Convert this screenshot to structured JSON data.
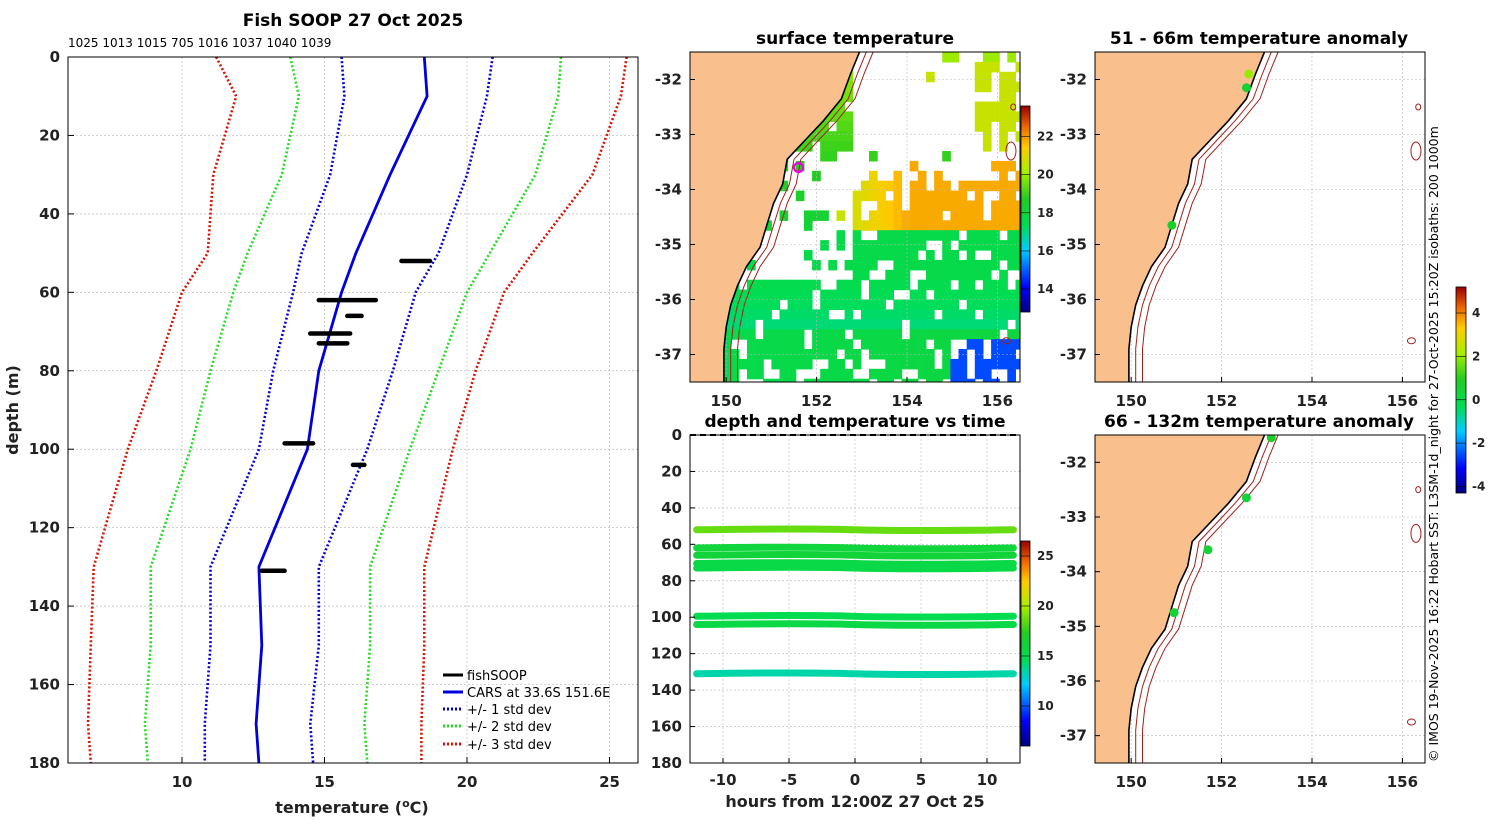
{
  "figure": {
    "footer": "© IMOS 19-Nov-2025 16:22 Hobart SST: L3SM-1d_night for 27-Oct-2025 15:20Z isobaths: 200  1000m"
  },
  "colors": {
    "land": "#f9c08e",
    "coast": "#000000",
    "isobath": "#a0201a",
    "cars": "#0000dd",
    "sd1": "#0000dd",
    "sd2": "#22dd22",
    "sd3": "#dd1100",
    "fishsoop": "#000000",
    "grid": "#b8b8b8",
    "float_marker": "#ee00ee"
  },
  "chart_data": [
    {
      "id": "profile",
      "type": "line",
      "title": "Fish SOOP 27 Oct 2025",
      "subtitle": "1025 1013 1015 705 1016 1037 1040 1039",
      "xlabel": "temperature (°C)",
      "ylabel": "depth (m)",
      "xlim": [
        6,
        26
      ],
      "ylim": [
        180,
        0
      ],
      "xticks": [
        10,
        15,
        20,
        25
      ],
      "yticks": [
        0,
        20,
        40,
        60,
        80,
        100,
        120,
        140,
        160,
        180
      ],
      "depth": [
        0,
        10,
        30,
        50,
        60,
        80,
        100,
        130,
        150,
        170,
        180
      ],
      "series": [
        {
          "name": "CARS at 33.6S 151.6E",
          "key": "cars",
          "style": "solid",
          "values": [
            18.5,
            18.6,
            17.3,
            16.1,
            15.6,
            14.8,
            14.4,
            12.7,
            12.8,
            12.6,
            12.7
          ]
        },
        {
          "name": "+/- 1 std dev",
          "key": "sd1",
          "style": "dotted",
          "values": [
            15.6,
            15.7,
            15.2,
            14.2,
            13.9,
            13.2,
            12.7,
            11.0,
            11.0,
            10.8,
            10.8
          ]
        },
        {
          "name": "+/- 1 std dev",
          "key": "sd1",
          "style": "dotted",
          "legend": false,
          "values": [
            20.9,
            20.7,
            20.0,
            19.0,
            18.2,
            17.4,
            16.5,
            14.8,
            14.8,
            14.5,
            14.6
          ]
        },
        {
          "name": "+/- 2 std dev",
          "key": "sd2",
          "style": "dotted",
          "values": [
            13.8,
            14.1,
            13.5,
            12.3,
            11.8,
            11.0,
            10.3,
            8.9,
            8.9,
            8.7,
            8.8
          ]
        },
        {
          "name": "+/- 2 std dev",
          "key": "sd2",
          "style": "dotted",
          "legend": false,
          "values": [
            23.3,
            23.2,
            22.4,
            20.8,
            20.0,
            19.0,
            18.0,
            16.6,
            16.6,
            16.4,
            16.5
          ]
        },
        {
          "name": "+/- 3 std dev",
          "key": "sd3",
          "style": "dotted",
          "values": [
            11.2,
            11.9,
            11.1,
            10.9,
            10.0,
            9.1,
            8.1,
            6.9,
            6.8,
            6.7,
            6.8
          ]
        },
        {
          "name": "+/- 3 std dev",
          "key": "sd3",
          "style": "dotted",
          "legend": false,
          "values": [
            25.6,
            25.4,
            24.4,
            22.3,
            21.3,
            20.3,
            19.5,
            18.5,
            18.5,
            18.4,
            18.4
          ]
        }
      ],
      "fishsoop": {
        "name": "fishSOOP",
        "segments": [
          {
            "depth": 52,
            "tmin": 17.7,
            "tmax": 18.7
          },
          {
            "depth": 62,
            "tmin": 14.8,
            "tmax": 16.8
          },
          {
            "depth": 66,
            "tmin": 15.8,
            "tmax": 16.3
          },
          {
            "depth": 70.5,
            "tmin": 14.5,
            "tmax": 15.9
          },
          {
            "depth": 73,
            "tmin": 14.8,
            "tmax": 15.8
          },
          {
            "depth": 98.5,
            "tmin": 13.6,
            "tmax": 14.6
          },
          {
            "depth": 104,
            "tmin": 16.0,
            "tmax": 16.4
          },
          {
            "depth": 131,
            "tmin": 12.8,
            "tmax": 13.6
          }
        ]
      },
      "legend_position": "bottom-right"
    },
    {
      "id": "sst_map",
      "type": "heatmap",
      "title": "surface temperature",
      "xlim": [
        149.2,
        156.5
      ],
      "ylim": [
        -37.5,
        -31.5
      ],
      "xticks": [
        150,
        152,
        154,
        156
      ],
      "yticks": [
        -32,
        -33,
        -34,
        -35,
        -36,
        -37
      ],
      "colorbar": {
        "min": 12.8,
        "max": 23.6,
        "ticks": [
          14,
          16,
          18,
          20,
          22
        ]
      },
      "float_position": {
        "lon": 151.6,
        "lat": -33.6
      }
    },
    {
      "id": "time_depth",
      "type": "scatter",
      "title": "depth and temperature vs time",
      "xlabel": "hours from 12:00Z 27 Oct 25",
      "xlim": [
        -12.5,
        12.5
      ],
      "ylim": [
        180,
        0
      ],
      "xticks": [
        -10,
        -5,
        0,
        5,
        10
      ],
      "yticks": [
        0,
        20,
        40,
        60,
        80,
        100,
        120,
        140,
        160,
        180
      ],
      "colorbar": {
        "min": 6,
        "max": 26.5,
        "ticks": [
          10,
          15,
          20,
          25
        ]
      },
      "tracks": [
        {
          "depth": 52,
          "temp": 18.6
        },
        {
          "depth": 62,
          "temp": 15.9
        },
        {
          "depth": 66,
          "temp": 16.0
        },
        {
          "depth": 70.5,
          "temp": 15.4
        },
        {
          "depth": 73,
          "temp": 15.3
        },
        {
          "depth": 99.5,
          "temp": 14.8
        },
        {
          "depth": 104,
          "temp": 15.4
        },
        {
          "depth": 131,
          "temp": 13.4
        }
      ]
    },
    {
      "id": "anom_upper",
      "type": "scatter",
      "title": "51 - 66m temperature anomaly",
      "xlim": [
        149.2,
        156.5
      ],
      "ylim": [
        -37.5,
        -31.5
      ],
      "xticks": [
        150,
        152,
        154,
        156
      ],
      "yticks": [
        -32,
        -33,
        -34,
        -35,
        -36,
        -37
      ],
      "points": [
        {
          "lon": 152.6,
          "lat": -31.9,
          "anomaly": 2.0
        },
        {
          "lon": 152.55,
          "lat": -32.15,
          "anomaly": 0.5
        },
        {
          "lon": 150.9,
          "lat": -34.65,
          "anomaly": 0.6
        }
      ]
    },
    {
      "id": "anom_lower",
      "type": "scatter",
      "title": "66 - 132m temperature anomaly",
      "xlim": [
        149.2,
        156.5
      ],
      "ylim": [
        -37.5,
        -31.5
      ],
      "xticks": [
        150,
        152,
        154,
        156
      ],
      "yticks": [
        -32,
        -33,
        -34,
        -35,
        -36,
        -37
      ],
      "colorbar": {
        "min": -4.3,
        "max": 5.2,
        "ticks": [
          -4,
          -2,
          0,
          2,
          4
        ]
      },
      "points": [
        {
          "lon": 153.1,
          "lat": -31.55,
          "anomaly": 0.8
        },
        {
          "lon": 152.55,
          "lat": -32.65,
          "anomaly": 0.4
        },
        {
          "lon": 151.7,
          "lat": -33.6,
          "anomaly": 0.5
        },
        {
          "lon": 150.95,
          "lat": -34.75,
          "anomaly": 0.4
        }
      ]
    }
  ]
}
